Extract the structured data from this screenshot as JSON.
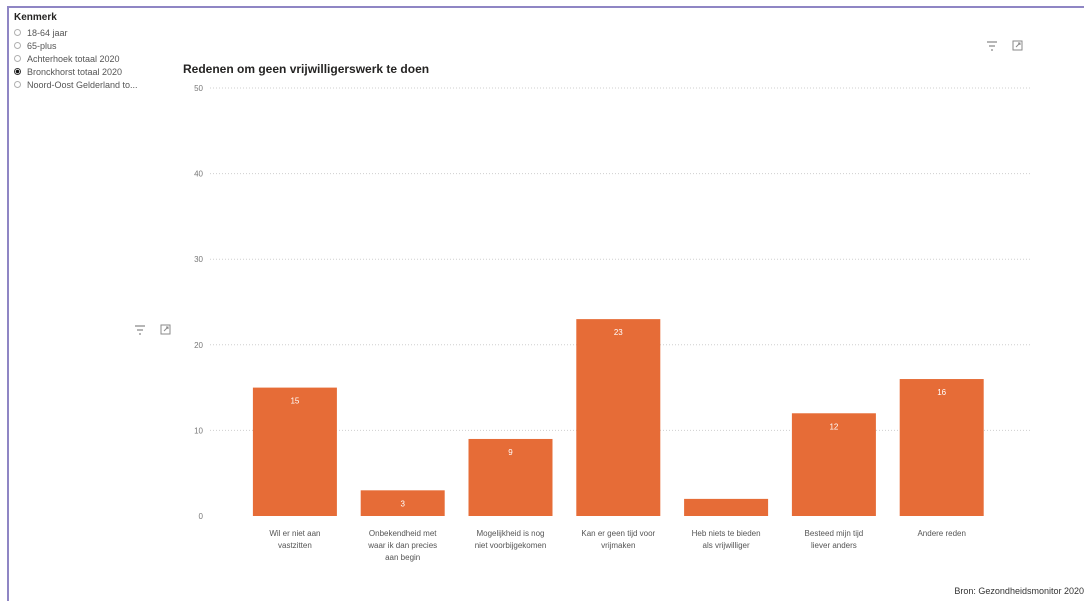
{
  "slicer": {
    "title": "Kenmerk",
    "options": [
      {
        "label": "18-64 jaar",
        "selected": false
      },
      {
        "label": "65-plus",
        "selected": false
      },
      {
        "label": "Achterhoek totaal 2020",
        "selected": false
      },
      {
        "label": "Bronckhorst totaal 2020",
        "selected": true
      },
      {
        "label": "Noord-Oost Gelderland to...",
        "selected": false
      }
    ]
  },
  "icons": {
    "filter": "filter-icon",
    "focus": "focus-mode-icon"
  },
  "source_note": "Bron: Gezondheidsmonitor 2020",
  "colors": {
    "bar": "#e66c37",
    "grid": "#cfcfcf",
    "frame": "#8f86c4"
  },
  "chart_data": {
    "type": "bar",
    "title": "Redenen om geen vrijwilligerswerk te doen",
    "xlabel": "",
    "ylabel": "",
    "ylim": [
      0,
      50
    ],
    "yticks": [
      0,
      10,
      20,
      30,
      40,
      50
    ],
    "grid": true,
    "categories": [
      [
        "Wil er niet aan",
        "vastzitten"
      ],
      [
        "Onbekendheid met",
        "waar ik dan precies",
        "aan begin"
      ],
      [
        "Mogelijkheid is nog",
        "niet voorbijgekomen"
      ],
      [
        "Kan er geen tijd voor",
        "vrijmaken"
      ],
      [
        "Heb niets te bieden",
        "als vrijwilliger"
      ],
      [
        "Besteed mijn tijd",
        "liever anders"
      ],
      [
        "Andere reden"
      ]
    ],
    "values": [
      15,
      3,
      9,
      23,
      2,
      12,
      16
    ],
    "data_labels": [
      "15",
      "3",
      "9",
      "23",
      "",
      "12",
      "16"
    ]
  }
}
